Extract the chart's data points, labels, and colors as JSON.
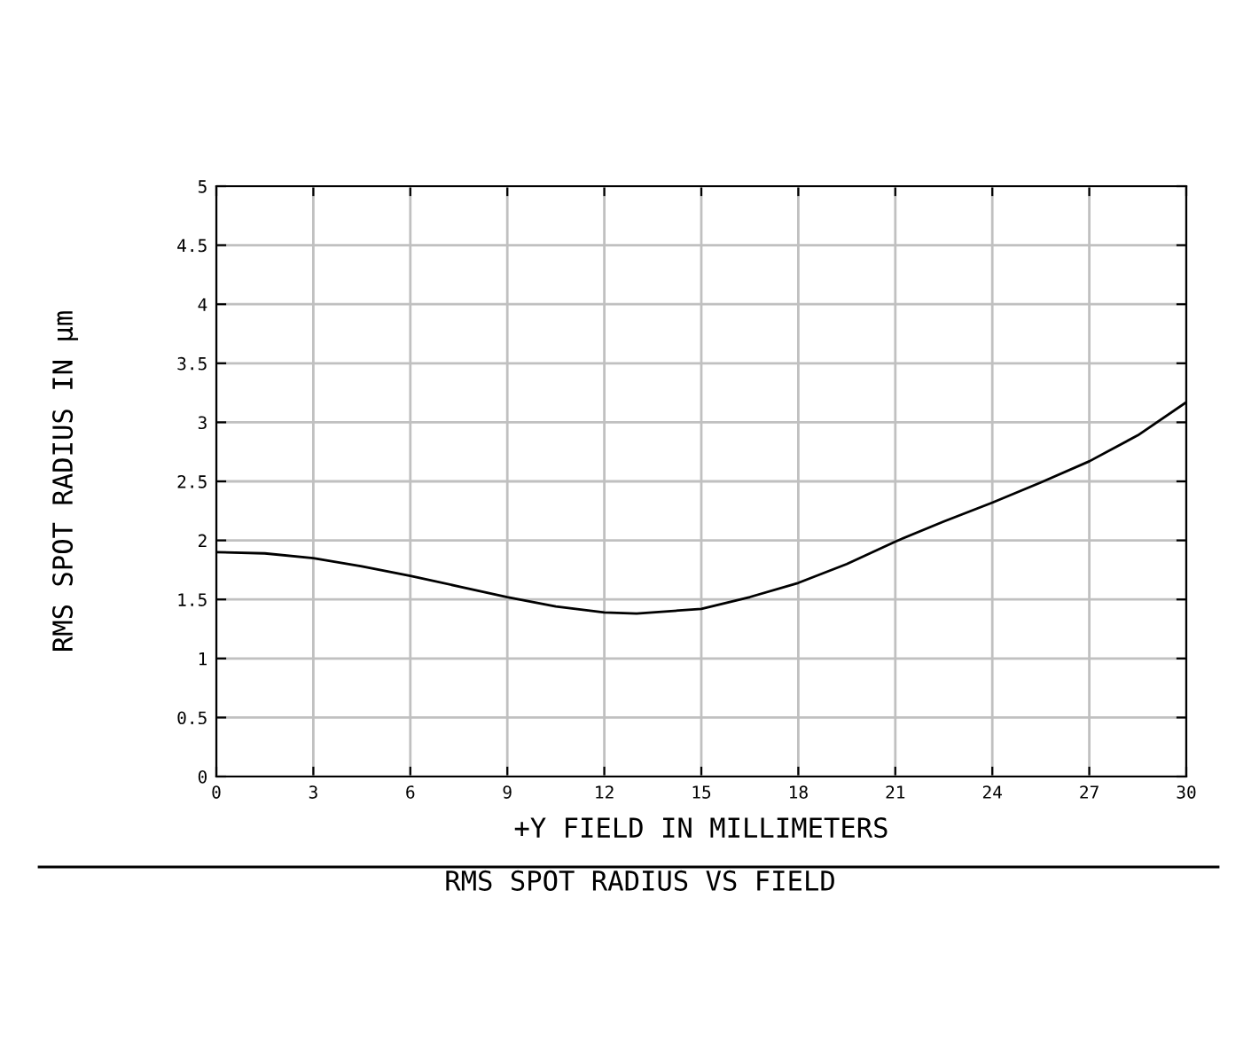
{
  "chart_data": {
    "type": "line",
    "title": "RMS SPOT RADIUS VS FIELD",
    "xlabel": "+Y FIELD IN MILLIMETERS",
    "ylabel": "RMS SPOT RADIUS IN μm",
    "x": [
      0,
      1.5,
      3,
      4.5,
      6,
      7.5,
      9,
      10.5,
      12,
      13,
      15,
      16.5,
      18,
      19.5,
      21,
      22.5,
      24,
      25.5,
      27,
      28.5,
      30
    ],
    "series": [
      {
        "color": "#000000",
        "values": [
          1.9,
          1.89,
          1.85,
          1.78,
          1.7,
          1.61,
          1.52,
          1.44,
          1.39,
          1.38,
          1.42,
          1.52,
          1.64,
          1.8,
          1.99,
          2.16,
          2.32,
          2.49,
          2.67,
          2.89,
          3.17
        ]
      }
    ],
    "xlim": [
      0,
      30
    ],
    "ylim": [
      0,
      5
    ],
    "xticks": [
      0,
      3,
      6,
      9,
      12,
      15,
      18,
      21,
      24,
      27,
      30
    ],
    "yticks": [
      0,
      0.5,
      1,
      1.5,
      2,
      2.5,
      3,
      3.5,
      4,
      4.5,
      5
    ],
    "grid": true,
    "marker": "none",
    "line_style": "solid"
  }
}
